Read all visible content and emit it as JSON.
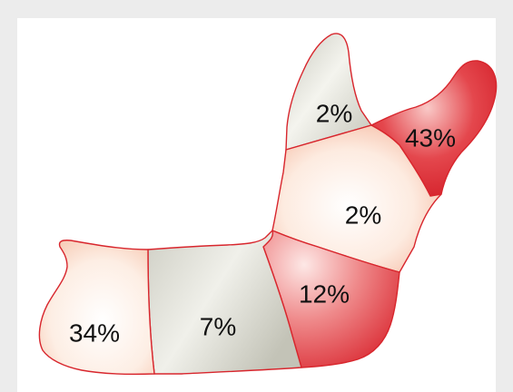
{
  "figure": {
    "regions": [
      {
        "id": "coronoid",
        "label": "2%",
        "value": 2,
        "tone": "grey"
      },
      {
        "id": "condyle",
        "label": "43%",
        "value": 43,
        "tone": "red"
      },
      {
        "id": "ramus",
        "label": "2%",
        "value": 2,
        "tone": "pale"
      },
      {
        "id": "angle",
        "label": "12%",
        "value": 12,
        "tone": "red"
      },
      {
        "id": "body",
        "label": "7%",
        "value": 7,
        "tone": "grey"
      },
      {
        "id": "symphysis",
        "label": "34%",
        "value": 34,
        "tone": "pale"
      }
    ],
    "colors": {
      "outline": "#d8262d",
      "grey": "#d9d9d1",
      "pale": "#fbe0d0",
      "red": "#e0323a"
    }
  }
}
